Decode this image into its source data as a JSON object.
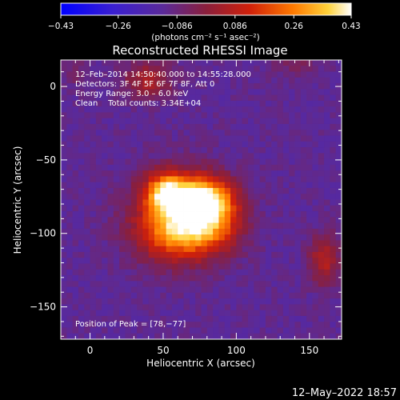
{
  "chart_data": {
    "type": "heatmap",
    "title": "Reconstructed RHESSI Image",
    "xlabel": "Heliocentric X (arcsec)",
    "ylabel": "Heliocentric Y (arcsec)",
    "xlim": [
      -20,
      172
    ],
    "ylim": [
      -172,
      18
    ],
    "xticks": [
      0,
      50,
      100,
      150
    ],
    "xtick_labels": [
      "0",
      "50",
      "100",
      "150"
    ],
    "yticks": [
      0,
      -50,
      -100,
      -150
    ],
    "ytick_labels": [
      "0",
      "−50",
      "−100",
      "−150"
    ],
    "colorbar": {
      "ticks": [
        -0.43,
        -0.26,
        -0.086,
        0.086,
        0.26,
        0.43
      ],
      "tick_labels": [
        "−0.43",
        "−0.26",
        "−0.086",
        "0.086",
        "0.26",
        "0.43"
      ],
      "range": [
        -0.43,
        0.43
      ],
      "units": "(photons cm⁻² s⁻¹ asec⁻²)"
    },
    "annotations": [
      "12–Feb–2014 14:50:40.000 to 14:55:28.000",
      "Detectors: 3F 4F 5F 6F 7F 8F, Att 0",
      "Energy Range: 3.0 – 6.0 keV",
      "Clean    Total counts: 3.34E+04"
    ],
    "peak_label": "Position of Peak = [78,−77]",
    "peak": [
      78,
      -77
    ],
    "sources": [
      {
        "x": 78,
        "y": -77,
        "amp": 0.43,
        "sx": 14,
        "sy": 10
      },
      {
        "x": 52,
        "y": -72,
        "amp": 0.36,
        "sx": 10,
        "sy": 9
      },
      {
        "x": 62,
        "y": -88,
        "amp": 0.3,
        "sx": 22,
        "sy": 20
      },
      {
        "x": 60,
        "y": -100,
        "amp": 0.22,
        "sx": 18,
        "sy": 12
      },
      {
        "x": 85,
        "y": -95,
        "amp": 0.18,
        "sx": 14,
        "sy": 12
      },
      {
        "x": 40,
        "y": 5,
        "amp": 0.18,
        "sx": 12,
        "sy": 9
      },
      {
        "x": 160,
        "y": -118,
        "amp": 0.2,
        "sx": 7,
        "sy": 12
      },
      {
        "x": 140,
        "y": 15,
        "amp": 0.08,
        "sx": 10,
        "sy": 6
      },
      {
        "x": -12,
        "y": 10,
        "amp": 0.06,
        "sx": 6,
        "sy": 8
      }
    ],
    "background": -0.12
  },
  "footer": {
    "date": "12–May–2022 18:57"
  }
}
